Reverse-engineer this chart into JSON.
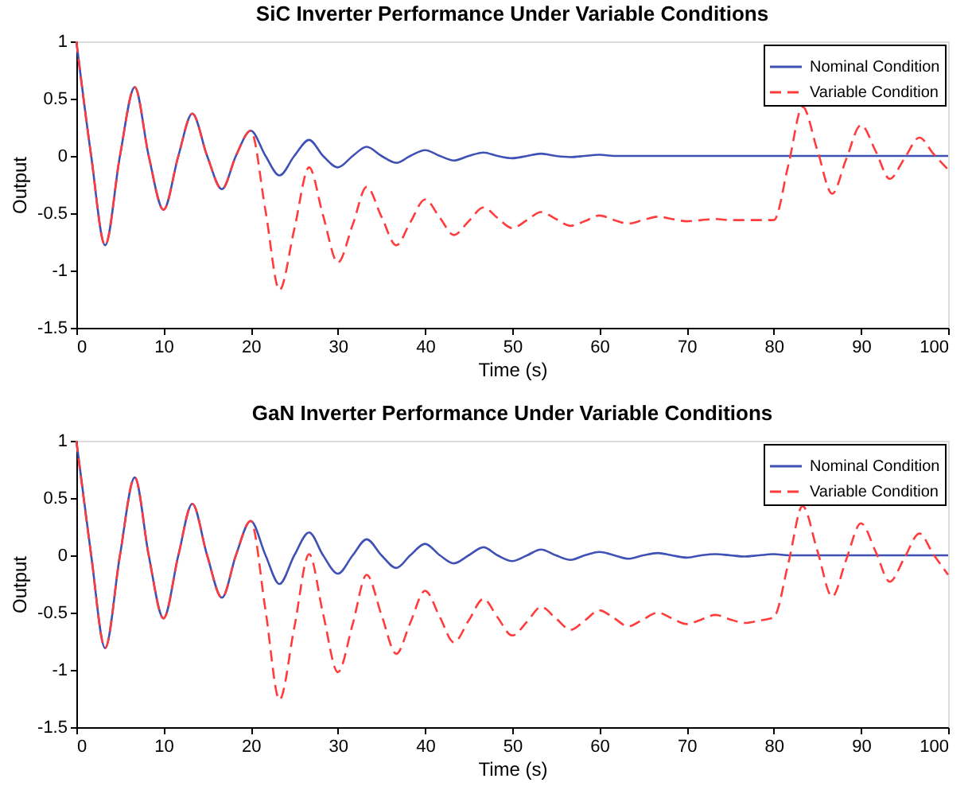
{
  "chart_data": [
    {
      "type": "line",
      "title": "SiC Inverter Performance Under Variable Conditions",
      "xlabel": "Time (s)",
      "ylabel": "Output",
      "x": [
        0,
        1.7,
        3.3,
        5,
        6.7,
        8.3,
        10,
        11.7,
        13.3,
        15,
        16.7,
        18.3,
        20,
        21.7,
        23.3,
        25,
        26.7,
        28.3,
        30,
        31.7,
        33.3,
        35,
        36.7,
        38.3,
        40,
        41.7,
        43.3,
        45,
        46.7,
        48.3,
        50,
        51.7,
        53.3,
        55,
        56.7,
        58.3,
        60,
        61.7,
        63.3,
        65,
        66.7,
        68.3,
        70,
        71.7,
        73.3,
        75,
        76.7,
        78.3,
        80,
        81.7,
        83.3,
        85,
        86.7,
        88.3,
        90,
        91.7,
        93.3,
        95,
        96.7,
        98.3,
        100
      ],
      "series": [
        {
          "name": "Nominal Condition",
          "color": "#3f51b5",
          "line_style": "solid",
          "values": [
            1,
            0,
            -0.78,
            0,
            0.6,
            0,
            -0.47,
            0,
            0.37,
            0,
            -0.29,
            0,
            0.22,
            0,
            -0.17,
            0,
            0.14,
            0,
            -0.1,
            0,
            0.08,
            0,
            -0.06,
            0,
            0.05,
            0,
            -0.04,
            0,
            0.03,
            0,
            -0.02,
            0,
            0.02,
            0,
            -0.01,
            0,
            0.01,
            0,
            0,
            0,
            0,
            0,
            0,
            0,
            0,
            0,
            0,
            0,
            0,
            0,
            0,
            0,
            0,
            0,
            0,
            0,
            0,
            0,
            0,
            0,
            0
          ]
        },
        {
          "name": "Variable Condition",
          "color": "#ff3b3b",
          "line_style": "dashed",
          "values": [
            1,
            0,
            -0.78,
            0,
            0.6,
            0,
            -0.47,
            0,
            0.37,
            0,
            -0.29,
            0,
            0.22,
            -0.48,
            -1.17,
            -0.64,
            -0.1,
            -0.52,
            -0.93,
            -0.6,
            -0.27,
            -0.53,
            -0.78,
            -0.58,
            -0.38,
            -0.54,
            -0.69,
            -0.57,
            -0.45,
            -0.54,
            -0.63,
            -0.56,
            -0.49,
            -0.55,
            -0.61,
            -0.57,
            -0.52,
            -0.56,
            -0.59,
            -0.56,
            -0.53,
            -0.55,
            -0.57,
            -0.56,
            -0.55,
            -0.56,
            -0.56,
            -0.56,
            -0.56,
            -0.07,
            0.43,
            0.05,
            -0.33,
            -0.03,
            0.27,
            0.04,
            -0.2,
            -0.02,
            0.16,
            0.02,
            -0.12
          ]
        }
      ],
      "xlim": [
        0,
        100
      ],
      "xticks": [
        0,
        10,
        20,
        30,
        40,
        50,
        60,
        70,
        80,
        90,
        100
      ],
      "ylim": [
        -1.5,
        1
      ],
      "yticks": [
        -1.5,
        {
          "value": -1,
          "label": "-1"
        },
        -0.5,
        {
          "value": 0,
          "label": "0"
        },
        0.5,
        {
          "value": 1,
          "label": "1"
        }
      ],
      "grid": false,
      "legend": "top right",
      "marker": "none"
    },
    {
      "type": "line",
      "title": "GaN Inverter Performance Under Variable Conditions",
      "xlabel": "Time (s)",
      "ylabel": "Output",
      "x": [
        0,
        1.7,
        3.3,
        5,
        6.7,
        8.3,
        10,
        11.7,
        13.3,
        15,
        16.7,
        18.3,
        20,
        21.7,
        23.3,
        25,
        26.7,
        28.3,
        30,
        31.7,
        33.3,
        35,
        36.7,
        38.3,
        40,
        41.7,
        43.3,
        45,
        46.7,
        48.3,
        50,
        51.7,
        53.3,
        55,
        56.7,
        58.3,
        60,
        61.7,
        63.3,
        65,
        66.7,
        68.3,
        70,
        71.7,
        73.3,
        75,
        76.7,
        78.3,
        80,
        81.7,
        83.3,
        85,
        86.7,
        88.3,
        90,
        91.7,
        93.3,
        95,
        96.7,
        98.3,
        100
      ],
      "series": [
        {
          "name": "Nominal Condition",
          "color": "#3f51b5",
          "line_style": "solid",
          "values": [
            1,
            0,
            -0.81,
            0,
            0.68,
            0,
            -0.55,
            0,
            0.45,
            0,
            -0.37,
            0,
            0.3,
            0,
            -0.25,
            0,
            0.2,
            0,
            -0.16,
            0,
            0.14,
            0,
            -0.11,
            0,
            0.1,
            0,
            -0.07,
            0,
            0.07,
            0,
            -0.05,
            0,
            0.05,
            0,
            -0.04,
            0,
            0.03,
            0,
            -0.03,
            0,
            0.02,
            0,
            -0.02,
            0,
            0.01,
            0,
            -0.01,
            0,
            0.01,
            0,
            0,
            0,
            0,
            0,
            0,
            0,
            0,
            0,
            0,
            0,
            0
          ]
        },
        {
          "name": "Variable Condition",
          "color": "#ff3b3b",
          "line_style": "dashed",
          "values": [
            1,
            0,
            -0.81,
            0,
            0.68,
            0,
            -0.55,
            0,
            0.45,
            0,
            -0.37,
            0,
            0.3,
            -0.48,
            -1.26,
            -0.63,
            0.01,
            -0.51,
            -1.02,
            -0.6,
            -0.17,
            -0.52,
            -0.86,
            -0.59,
            -0.31,
            -0.54,
            -0.76,
            -0.57,
            -0.38,
            -0.54,
            -0.7,
            -0.58,
            -0.45,
            -0.55,
            -0.65,
            -0.57,
            -0.48,
            -0.55,
            -0.62,
            -0.56,
            -0.5,
            -0.55,
            -0.6,
            -0.56,
            -0.52,
            -0.56,
            -0.59,
            -0.57,
            -0.54,
            -0.06,
            0.43,
            0.04,
            -0.36,
            -0.04,
            0.28,
            0.03,
            -0.23,
            -0.02,
            0.19,
            0.01,
            -0.17
          ]
        }
      ],
      "xlim": [
        0,
        100
      ],
      "xticks": [
        0,
        10,
        20,
        30,
        40,
        50,
        60,
        70,
        80,
        90,
        100
      ],
      "ylim": [
        -1.5,
        1
      ],
      "yticks": [
        -1.5,
        {
          "value": -1,
          "label": "-1"
        },
        -0.5,
        {
          "value": 0,
          "label": "0"
        },
        0.5,
        {
          "value": 1,
          "label": "1"
        }
      ],
      "grid": false,
      "legend": "top right",
      "marker": "none"
    }
  ]
}
